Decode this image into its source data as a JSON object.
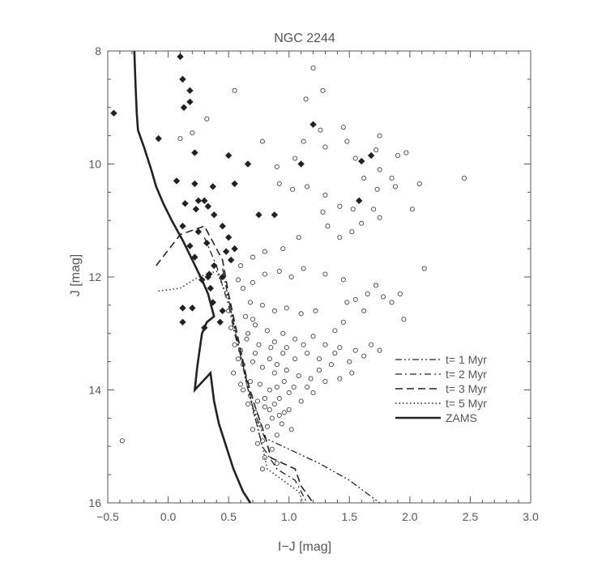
{
  "chart_data": {
    "type": "scatter",
    "title": "NGC 2244",
    "xlabel": "I−J [mag]",
    "ylabel": "J [mag]",
    "xlim": [
      -0.5,
      3.0
    ],
    "ylim": [
      16,
      8
    ],
    "y_inverted": true,
    "grid": false,
    "legend_position": "lower-right",
    "x_ticks": [
      -0.5,
      0.0,
      0.5,
      1.0,
      1.5,
      2.0,
      2.5,
      3.0
    ],
    "x_tick_labels": [
      "−0.5",
      "0.0",
      "0.5",
      "1.0",
      "1.5",
      "2.0",
      "2.5",
      "3.0"
    ],
    "y_ticks": [
      8,
      10,
      12,
      14,
      16
    ],
    "y_tick_labels": [
      "8",
      "10",
      "12",
      "14",
      "16"
    ],
    "legend": [
      {
        "label": "t= 1 Myr",
        "style": "dash-dot-dot"
      },
      {
        "label": "t= 2 Myr",
        "style": "dash-dot"
      },
      {
        "label": "t= 3 Myr",
        "style": "dashed"
      },
      {
        "label": "t= 5 Myr",
        "style": "dotted"
      },
      {
        "label": "ZAMS",
        "style": "solid"
      }
    ],
    "series": [
      {
        "name": "members",
        "marker": "filled-diamond",
        "points": [
          [
            0.1,
            8.1
          ],
          [
            0.12,
            8.5
          ],
          [
            0.18,
            8.7
          ],
          [
            0.13,
            9.0
          ],
          [
            0.18,
            8.9
          ],
          [
            -0.45,
            9.1
          ],
          [
            -0.08,
            9.55
          ],
          [
            0.5,
            9.85
          ],
          [
            0.22,
            9.8
          ],
          [
            0.07,
            10.3
          ],
          [
            0.22,
            10.35
          ],
          [
            0.25,
            10.65
          ],
          [
            0.3,
            10.65
          ],
          [
            0.37,
            10.4
          ],
          [
            0.33,
            10.75
          ],
          [
            0.38,
            10.9
          ],
          [
            0.14,
            10.7
          ],
          [
            0.23,
            10.8
          ],
          [
            0.55,
            10.35
          ],
          [
            0.66,
            10.0
          ],
          [
            0.88,
            10.9
          ],
          [
            1.2,
            9.3
          ],
          [
            1.1,
            10.0
          ],
          [
            1.6,
            9.95
          ],
          [
            1.68,
            9.85
          ],
          [
            1.58,
            10.65
          ],
          [
            0.75,
            10.9
          ],
          [
            0.12,
            11.1
          ],
          [
            0.25,
            11.2
          ],
          [
            0.45,
            11.1
          ],
          [
            0.5,
            11.3
          ],
          [
            0.55,
            11.5
          ],
          [
            0.32,
            11.4
          ],
          [
            0.18,
            11.45
          ],
          [
            0.22,
            11.65
          ],
          [
            0.48,
            11.55
          ],
          [
            0.38,
            11.8
          ],
          [
            0.45,
            12.0
          ],
          [
            0.33,
            12.0
          ],
          [
            0.35,
            12.2
          ],
          [
            0.37,
            12.45
          ],
          [
            0.45,
            12.6
          ],
          [
            0.12,
            12.55
          ],
          [
            0.2,
            12.55
          ],
          [
            0.12,
            12.8
          ],
          [
            0.3,
            12.9
          ],
          [
            0.43,
            12.8
          ],
          [
            0.34,
            11.95
          ],
          [
            0.28,
            12.05
          ],
          [
            0.52,
            11.7
          ]
        ]
      },
      {
        "name": "field",
        "marker": "open-circle",
        "points": [
          [
            0.55,
            8.7
          ],
          [
            1.2,
            8.3
          ],
          [
            1.28,
            8.7
          ],
          [
            1.14,
            8.85
          ],
          [
            0.1,
            9.55
          ],
          [
            0.2,
            9.45
          ],
          [
            0.32,
            9.2
          ],
          [
            0.78,
            9.6
          ],
          [
            1.05,
            9.9
          ],
          [
            1.12,
            9.6
          ],
          [
            1.26,
            9.4
          ],
          [
            1.3,
            9.7
          ],
          [
            1.45,
            9.35
          ],
          [
            1.48,
            9.6
          ],
          [
            1.55,
            9.9
          ],
          [
            1.72,
            9.75
          ],
          [
            1.75,
            9.5
          ],
          [
            1.9,
            9.85
          ],
          [
            1.97,
            9.8
          ],
          [
            2.45,
            10.25
          ],
          [
            2.08,
            10.35
          ],
          [
            2.02,
            10.8
          ],
          [
            1.62,
            10.25
          ],
          [
            1.75,
            10.1
          ],
          [
            1.85,
            10.25
          ],
          [
            1.88,
            10.4
          ],
          [
            1.73,
            10.45
          ],
          [
            0.9,
            10.05
          ],
          [
            0.92,
            10.35
          ],
          [
            1.03,
            10.45
          ],
          [
            1.15,
            10.4
          ],
          [
            1.3,
            10.55
          ],
          [
            1.28,
            10.85
          ],
          [
            1.42,
            10.75
          ],
          [
            1.53,
            10.8
          ],
          [
            1.7,
            10.8
          ],
          [
            1.75,
            10.95
          ],
          [
            1.6,
            11.05
          ],
          [
            1.52,
            11.2
          ],
          [
            1.42,
            11.3
          ],
          [
            1.32,
            11.1
          ],
          [
            1.08,
            11.3
          ],
          [
            0.95,
            11.5
          ],
          [
            0.8,
            11.55
          ],
          [
            0.7,
            11.65
          ],
          [
            0.6,
            11.8
          ],
          [
            0.58,
            12.05
          ],
          [
            0.62,
            12.2
          ],
          [
            0.7,
            12.1
          ],
          [
            0.8,
            11.95
          ],
          [
            0.92,
            11.9
          ],
          [
            1.02,
            12.0
          ],
          [
            1.12,
            11.85
          ],
          [
            1.3,
            11.95
          ],
          [
            1.45,
            12.05
          ],
          [
            1.72,
            12.15
          ],
          [
            1.78,
            12.35
          ],
          [
            1.65,
            12.3
          ],
          [
            1.55,
            12.4
          ],
          [
            1.48,
            12.45
          ],
          [
            1.85,
            12.45
          ],
          [
            1.92,
            12.3
          ],
          [
            1.95,
            12.75
          ],
          [
            2.12,
            11.85
          ],
          [
            1.62,
            12.6
          ],
          [
            1.45,
            12.8
          ],
          [
            1.38,
            12.95
          ],
          [
            1.22,
            12.6
          ],
          [
            1.1,
            12.65
          ],
          [
            0.98,
            12.55
          ],
          [
            0.88,
            12.6
          ],
          [
            0.78,
            12.5
          ],
          [
            0.68,
            12.45
          ],
          [
            0.64,
            12.7
          ],
          [
            0.72,
            12.85
          ],
          [
            0.82,
            12.95
          ],
          [
            0.95,
            13.0
          ],
          [
            1.05,
            13.1
          ],
          [
            1.2,
            13.05
          ],
          [
            1.3,
            13.2
          ],
          [
            1.42,
            13.25
          ],
          [
            1.55,
            13.3
          ],
          [
            1.68,
            13.2
          ],
          [
            1.75,
            13.3
          ],
          [
            1.62,
            13.4
          ],
          [
            1.5,
            13.5
          ],
          [
            1.35,
            13.55
          ],
          [
            1.25,
            13.45
          ],
          [
            1.15,
            13.35
          ],
          [
            1.05,
            13.45
          ],
          [
            0.95,
            13.35
          ],
          [
            0.85,
            13.25
          ],
          [
            0.75,
            13.2
          ],
          [
            0.65,
            13.1
          ],
          [
            0.6,
            13.3
          ],
          [
            0.62,
            13.55
          ],
          [
            0.7,
            13.5
          ],
          [
            0.78,
            13.6
          ],
          [
            0.88,
            13.7
          ],
          [
            0.98,
            13.65
          ],
          [
            1.08,
            13.75
          ],
          [
            1.18,
            13.8
          ],
          [
            1.3,
            13.85
          ],
          [
            1.42,
            13.8
          ],
          [
            1.52,
            13.7
          ],
          [
            1.2,
            14.05
          ],
          [
            1.1,
            14.2
          ],
          [
            1.0,
            14.35
          ],
          [
            0.92,
            14.15
          ],
          [
            0.84,
            14.0
          ],
          [
            0.76,
            13.9
          ],
          [
            0.68,
            13.85
          ],
          [
            0.62,
            14.0
          ],
          [
            0.66,
            14.25
          ],
          [
            0.72,
            14.4
          ],
          [
            0.8,
            14.3
          ],
          [
            0.86,
            14.5
          ],
          [
            0.94,
            14.6
          ],
          [
            1.02,
            14.7
          ],
          [
            0.9,
            14.8
          ],
          [
            0.82,
            14.65
          ],
          [
            0.75,
            14.6
          ],
          [
            0.78,
            14.9
          ],
          [
            0.86,
            15.05
          ],
          [
            0.8,
            15.2
          ],
          [
            0.9,
            15.3
          ],
          [
            0.78,
            15.4
          ],
          [
            -0.38,
            14.9
          ],
          [
            0.5,
            12.6
          ],
          [
            0.52,
            12.9
          ],
          [
            0.55,
            13.2
          ],
          [
            0.58,
            13.45
          ],
          [
            0.54,
            13.7
          ],
          [
            0.6,
            13.9
          ],
          [
            0.68,
            14.1
          ],
          [
            0.74,
            14.2
          ],
          [
            0.9,
            13.95
          ],
          [
            1.0,
            14.05
          ],
          [
            1.15,
            13.95
          ],
          [
            0.72,
            13.35
          ],
          [
            0.66,
            13.0
          ],
          [
            0.7,
            12.75
          ],
          [
            0.88,
            13.15
          ],
          [
            0.98,
            13.25
          ],
          [
            1.12,
            13.2
          ],
          [
            1.25,
            13.65
          ],
          [
            1.38,
            13.35
          ],
          [
            0.84,
            13.45
          ],
          [
            0.9,
            13.55
          ],
          [
            0.96,
            13.85
          ],
          [
            1.04,
            13.95
          ],
          [
            0.8,
            14.15
          ],
          [
            0.88,
            14.25
          ],
          [
            0.96,
            14.4
          ],
          [
            0.7,
            14.7
          ],
          [
            0.74,
            14.95
          ],
          [
            0.84,
            14.35
          ],
          [
            0.92,
            14.45
          ]
        ]
      },
      {
        "name": "t= 1 Myr",
        "style": "dash-dot-dot",
        "points": [
          [
            0.45,
            11.85
          ],
          [
            0.5,
            12.4
          ],
          [
            0.55,
            12.9
          ],
          [
            0.6,
            13.4
          ],
          [
            0.65,
            13.9
          ],
          [
            0.7,
            14.3
          ],
          [
            0.75,
            14.6
          ],
          [
            0.8,
            14.85
          ],
          [
            1.0,
            15.05
          ],
          [
            1.25,
            15.3
          ],
          [
            1.5,
            15.6
          ],
          [
            1.75,
            16.0
          ]
        ]
      },
      {
        "name": "t= 2 Myr",
        "style": "dash-dot",
        "points": [
          [
            0.3,
            11.3
          ],
          [
            0.4,
            11.8
          ],
          [
            0.5,
            12.5
          ],
          [
            0.55,
            13.0
          ],
          [
            0.6,
            13.4
          ],
          [
            0.67,
            14.0
          ],
          [
            0.72,
            14.5
          ],
          [
            0.78,
            15.0
          ],
          [
            0.9,
            15.4
          ],
          [
            1.05,
            15.6
          ],
          [
            1.15,
            16.0
          ]
        ]
      },
      {
        "name": "t= 3 Myr",
        "style": "dashed",
        "points": [
          [
            -0.1,
            11.8
          ],
          [
            0.1,
            11.25
          ],
          [
            0.3,
            11.1
          ],
          [
            0.45,
            11.7
          ],
          [
            0.5,
            12.3
          ],
          [
            0.55,
            12.8
          ],
          [
            0.6,
            13.3
          ],
          [
            0.65,
            13.8
          ],
          [
            0.72,
            14.3
          ],
          [
            0.8,
            14.8
          ],
          [
            0.85,
            15.2
          ],
          [
            1.05,
            15.4
          ],
          [
            1.1,
            15.7
          ],
          [
            1.2,
            16.0
          ]
        ]
      },
      {
        "name": "t= 5 Myr",
        "style": "dotted",
        "points": [
          [
            -0.08,
            12.25
          ],
          [
            0.1,
            12.2
          ],
          [
            0.25,
            12.0
          ],
          [
            0.4,
            11.9
          ],
          [
            0.5,
            12.4
          ],
          [
            0.55,
            12.9
          ],
          [
            0.6,
            13.4
          ],
          [
            0.65,
            13.9
          ],
          [
            0.72,
            14.5
          ],
          [
            0.78,
            15.0
          ],
          [
            0.82,
            15.4
          ],
          [
            0.95,
            15.6
          ],
          [
            1.08,
            15.8
          ],
          [
            1.12,
            16.0
          ]
        ]
      },
      {
        "name": "ZAMS",
        "style": "solid",
        "points": [
          [
            -0.28,
            8.0
          ],
          [
            -0.27,
            8.6
          ],
          [
            -0.26,
            9.1
          ],
          [
            -0.25,
            9.4
          ],
          [
            -0.2,
            9.7
          ],
          [
            -0.14,
            10.1
          ],
          [
            -0.1,
            10.4
          ],
          [
            -0.04,
            10.7
          ],
          [
            0.03,
            11.0
          ],
          [
            0.12,
            11.35
          ],
          [
            0.2,
            11.7
          ],
          [
            0.28,
            12.05
          ],
          [
            0.33,
            12.3
          ],
          [
            0.38,
            12.7
          ],
          [
            0.32,
            12.8
          ],
          [
            0.28,
            13.0
          ],
          [
            0.26,
            13.3
          ],
          [
            0.24,
            13.6
          ],
          [
            0.22,
            14.0
          ],
          [
            0.35,
            13.7
          ],
          [
            0.38,
            14.2
          ],
          [
            0.42,
            14.6
          ],
          [
            0.48,
            15.0
          ],
          [
            0.54,
            15.4
          ],
          [
            0.62,
            15.8
          ],
          [
            0.68,
            16.0
          ]
        ]
      }
    ]
  }
}
